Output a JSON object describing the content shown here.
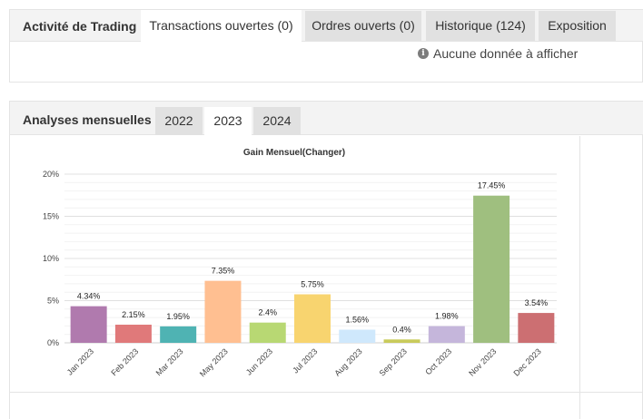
{
  "trading": {
    "title": "Activité de Trading",
    "tabs": [
      {
        "label": "Transactions ouvertes (0)",
        "active": true
      },
      {
        "label": "Ordres ouverts (0)",
        "active": false
      },
      {
        "label": "Historique (124)",
        "active": false
      },
      {
        "label": "Exposition",
        "active": false
      }
    ],
    "empty_message": "Aucune donnée à afficher",
    "info_icon": "info-icon"
  },
  "monthly": {
    "title": "Analyses mensuelles",
    "tabs": [
      {
        "label": "2022",
        "active": false
      },
      {
        "label": "2023",
        "active": true
      },
      {
        "label": "2024",
        "active": false
      }
    ]
  },
  "chart_data": {
    "type": "bar",
    "title": "Gain Mensuel(Changer)",
    "categories": [
      "Jan 2023",
      "Feb 2023",
      "Mar 2023",
      "May 2023",
      "Jun 2023",
      "Jul 2023",
      "Aug 2023",
      "Sep 2023",
      "Oct 2023",
      "Nov 2023",
      "Dec 2023"
    ],
    "values": [
      4.34,
      2.15,
      1.95,
      7.35,
      2.4,
      5.75,
      1.56,
      0.4,
      1.98,
      17.45,
      3.54
    ],
    "data_labels": [
      "4.34%",
      "2.15%",
      "1.95%",
      "7.35%",
      "2.4%",
      "5.75%",
      "1.56%",
      "0.4%",
      "1.98%",
      "17.45%",
      "3.54%"
    ],
    "colors": [
      "#b07aae",
      "#e0797a",
      "#4fb3b3",
      "#ffbf91",
      "#b8d873",
      "#f8d46f",
      "#cfe8fc",
      "#c9cb5b",
      "#c5b6db",
      "#9fbf7f",
      "#cc6f72"
    ],
    "yticks": [
      "0%",
      "5%",
      "10%",
      "15%",
      "20%"
    ],
    "ylim": [
      0,
      20
    ],
    "grid": true,
    "xlabel": "",
    "ylabel": ""
  }
}
